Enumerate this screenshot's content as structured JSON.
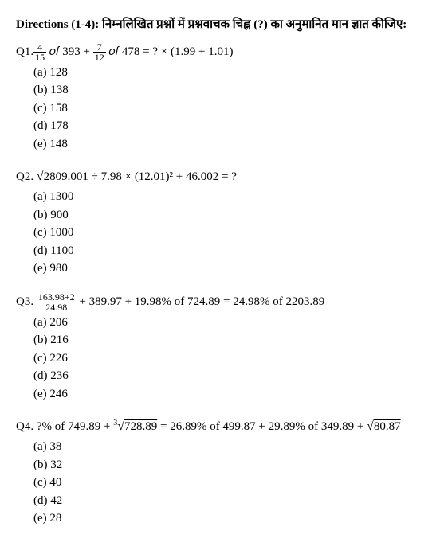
{
  "directions": "Directions (1-4):   निम्नलिखित  प्रश्नों  में प्रश्नवाचक  चिह्न  (?) का  अनुमानित  मान  ज्ञात कीजिए:",
  "questions": [
    {
      "label": "Q1.",
      "frac1_num": "4",
      "frac1_den": "15",
      "mid1": " 𝑜𝑓 393 + ",
      "frac2_num": "7",
      "frac2_den": "12",
      "mid2": " 𝑜𝑓 478 = ? × (1.99 + 1.01)",
      "options": [
        "(a) 128",
        "(b) 138",
        "(c) 158",
        "(d) 178",
        "(e) 148"
      ]
    },
    {
      "label": "Q2. ",
      "sqrt_content": "2809.001",
      "rest": " ÷ 7.98 × (12.01)² + 46.002 = ?",
      "options": [
        "(a) 1300",
        "(b) 900",
        "(c) 1000",
        "(d) 1100",
        "(e) 980"
      ]
    },
    {
      "label": "Q3.   ",
      "frac_num": "163.98+2",
      "frac_den": "24.98",
      "rest": " + 389.97 + 19.98% of 724.89 = 24.98% of 2203.89",
      "options": [
        "(a) 206",
        "(b) 216",
        "(c) 226",
        "(d) 236",
        "(e) 246"
      ]
    },
    {
      "label": "Q4. ",
      "part1": "?% of 749.89 + ",
      "cube_root": "728.89",
      "part2": " = 26.89% of 499.87 + 29.89% of 349.89 + ",
      "sqrt2": "80.87",
      "options": [
        "(a) 38",
        "(b) 32",
        "(c) 40",
        "(d) 42",
        "(e) 28"
      ]
    }
  ]
}
